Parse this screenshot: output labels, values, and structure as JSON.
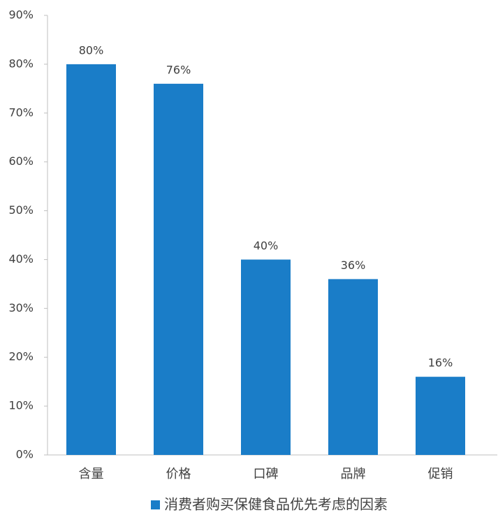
{
  "chart_data": {
    "type": "bar",
    "categories": [
      "含量",
      "价格",
      "口碑",
      "品牌",
      "促销"
    ],
    "series": [
      {
        "name": "消费者购买保健食品优先考虑的因素",
        "color": "#1a7dc8",
        "values": [
          80,
          76,
          40,
          36,
          16
        ],
        "value_labels": [
          "80%",
          "76%",
          "40%",
          "36%",
          "16%"
        ]
      }
    ],
    "ylim": [
      0,
      90
    ],
    "yticks": [
      {
        "value": 0,
        "label": "0%"
      },
      {
        "value": 10,
        "label": "10%"
      },
      {
        "value": 20,
        "label": "20%"
      },
      {
        "value": 30,
        "label": "30%"
      },
      {
        "value": 40,
        "label": "40%"
      },
      {
        "value": 50,
        "label": "50%"
      },
      {
        "value": 60,
        "label": "60%"
      },
      {
        "value": 70,
        "label": "70%"
      },
      {
        "value": 80,
        "label": "80%"
      },
      {
        "value": 90,
        "label": "90%"
      }
    ],
    "grid": false,
    "legend": "bottom"
  }
}
